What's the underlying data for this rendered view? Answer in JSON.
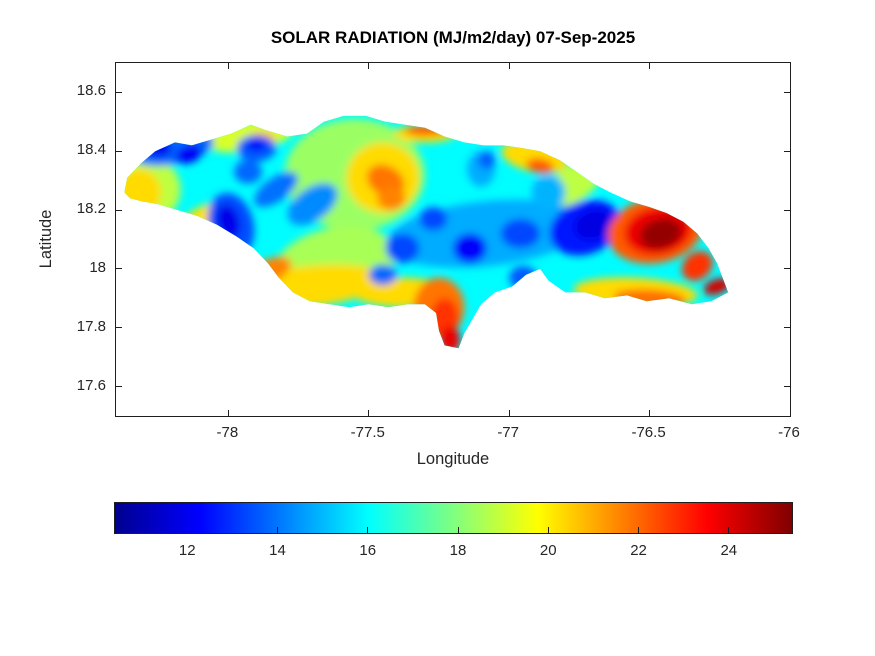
{
  "chart_data": {
    "type": "heatmap",
    "title": "SOLAR RADIATION (MJ/m2/day) 07-Sep-2025",
    "x_axis": {
      "label": "Longitude",
      "range": [
        -78.4,
        -76.0
      ],
      "ticks": [
        {
          "v": -78,
          "label": "-78"
        },
        {
          "v": -77.5,
          "label": "-77.5"
        },
        {
          "v": -77,
          "label": "-77"
        },
        {
          "v": -76.5,
          "label": "-76.5"
        },
        {
          "v": -76,
          "label": "-76"
        }
      ]
    },
    "y_axis": {
      "label": "Latitude",
      "range": [
        17.5,
        18.7
      ],
      "ticks": [
        {
          "v": 18.6,
          "label": "18.6"
        },
        {
          "v": 18.4,
          "label": "18.4"
        },
        {
          "v": 18.2,
          "label": "18.2"
        },
        {
          "v": 18,
          "label": "18"
        },
        {
          "v": 17.8,
          "label": "17.8"
        },
        {
          "v": 17.6,
          "label": "17.6"
        }
      ]
    },
    "colorbar": {
      "min": 10.4,
      "max": 25.4,
      "colormap": "jet",
      "orientation": "horizontal",
      "ticks": [
        {
          "v": 12,
          "label": "12"
        },
        {
          "v": 14,
          "label": "14"
        },
        {
          "v": 16,
          "label": "16"
        },
        {
          "v": 18,
          "label": "18"
        },
        {
          "v": 20,
          "label": "20"
        },
        {
          "v": 22,
          "label": "22"
        },
        {
          "v": 24,
          "label": "24"
        }
      ],
      "stops": [
        {
          "f": 0.0,
          "rgb": [
            0,
            0,
            143
          ]
        },
        {
          "f": 0.125,
          "rgb": [
            0,
            0,
            255
          ]
        },
        {
          "f": 0.375,
          "rgb": [
            0,
            255,
            255
          ]
        },
        {
          "f": 0.625,
          "rgb": [
            255,
            255,
            0
          ]
        },
        {
          "f": 0.875,
          "rgb": [
            255,
            0,
            0
          ]
        },
        {
          "f": 1.0,
          "rgb": [
            128,
            0,
            0
          ]
        }
      ]
    },
    "grid": false,
    "legend": "colorbar-bottom",
    "base_value": 16.0,
    "island_outline": [
      [
        -78.37,
        18.26
      ],
      [
        -78.36,
        18.31
      ],
      [
        -78.31,
        18.36
      ],
      [
        -78.26,
        18.4
      ],
      [
        -78.19,
        18.43
      ],
      [
        -78.13,
        18.42
      ],
      [
        -78.06,
        18.44
      ],
      [
        -77.99,
        18.46
      ],
      [
        -77.92,
        18.49
      ],
      [
        -77.86,
        18.47
      ],
      [
        -77.79,
        18.45
      ],
      [
        -77.72,
        18.46
      ],
      [
        -77.66,
        18.5
      ],
      [
        -77.59,
        18.52
      ],
      [
        -77.51,
        18.52
      ],
      [
        -77.44,
        18.5
      ],
      [
        -77.37,
        18.49
      ],
      [
        -77.3,
        18.48
      ],
      [
        -77.23,
        18.45
      ],
      [
        -77.16,
        18.43
      ],
      [
        -77.09,
        18.42
      ],
      [
        -77.02,
        18.42
      ],
      [
        -76.95,
        18.41
      ],
      [
        -76.89,
        18.4
      ],
      [
        -76.82,
        18.37
      ],
      [
        -76.76,
        18.33
      ],
      [
        -76.7,
        18.29
      ],
      [
        -76.64,
        18.26
      ],
      [
        -76.57,
        18.23
      ],
      [
        -76.5,
        18.21
      ],
      [
        -76.44,
        18.19
      ],
      [
        -76.38,
        18.16
      ],
      [
        -76.33,
        18.12
      ],
      [
        -76.29,
        18.07
      ],
      [
        -76.26,
        18.02
      ],
      [
        -76.24,
        17.97
      ],
      [
        -76.22,
        17.92
      ],
      [
        -76.28,
        17.89
      ],
      [
        -76.35,
        17.88
      ],
      [
        -76.43,
        17.9
      ],
      [
        -76.51,
        17.89
      ],
      [
        -76.58,
        17.91
      ],
      [
        -76.66,
        17.9
      ],
      [
        -76.73,
        17.92
      ],
      [
        -76.8,
        17.92
      ],
      [
        -76.86,
        17.96
      ],
      [
        -76.89,
        18.0
      ],
      [
        -76.94,
        17.98
      ],
      [
        -76.99,
        17.94
      ],
      [
        -77.05,
        17.92
      ],
      [
        -77.1,
        17.88
      ],
      [
        -77.13,
        17.83
      ],
      [
        -77.16,
        17.78
      ],
      [
        -77.18,
        17.73
      ],
      [
        -77.23,
        17.74
      ],
      [
        -77.25,
        17.79
      ],
      [
        -77.26,
        17.85
      ],
      [
        -77.3,
        17.88
      ],
      [
        -77.36,
        17.88
      ],
      [
        -77.43,
        17.87
      ],
      [
        -77.5,
        17.88
      ],
      [
        -77.57,
        17.87
      ],
      [
        -77.64,
        17.88
      ],
      [
        -77.71,
        17.89
      ],
      [
        -77.77,
        17.92
      ],
      [
        -77.82,
        17.97
      ],
      [
        -77.86,
        18.02
      ],
      [
        -77.91,
        18.07
      ],
      [
        -77.97,
        18.11
      ],
      [
        -78.04,
        18.15
      ],
      [
        -78.11,
        18.18
      ],
      [
        -78.18,
        18.2
      ],
      [
        -78.25,
        18.22
      ],
      [
        -78.31,
        18.23
      ],
      [
        -78.35,
        18.24
      ]
    ],
    "features": [
      {
        "lon": -78.31,
        "lat": 18.27,
        "rx": 0.14,
        "ry": 0.12,
        "rot": 0,
        "v": 18.8
      },
      {
        "lon": -78.32,
        "lat": 18.26,
        "rx": 0.08,
        "ry": 0.08,
        "rot": 0,
        "v": 20.3
      },
      {
        "lon": -77.93,
        "lat": 18.45,
        "rx": 0.16,
        "ry": 0.05,
        "rot": -8,
        "v": 19.2
      },
      {
        "lon": -77.88,
        "lat": 18.44,
        "rx": 0.05,
        "ry": 0.03,
        "rot": 0,
        "v": 20.6
      },
      {
        "lon": -77.55,
        "lat": 18.32,
        "rx": 0.25,
        "ry": 0.19,
        "rot": 0,
        "v": 18.3
      },
      {
        "lon": -77.45,
        "lat": 18.31,
        "rx": 0.13,
        "ry": 0.12,
        "rot": 0,
        "v": 20.3
      },
      {
        "lon": -77.44,
        "lat": 18.3,
        "rx": 0.07,
        "ry": 0.05,
        "rot": 30,
        "v": 21.8
      },
      {
        "lon": -77.42,
        "lat": 18.24,
        "rx": 0.05,
        "ry": 0.04,
        "rot": 0,
        "v": 21.6
      },
      {
        "lon": -77.3,
        "lat": 18.46,
        "rx": 0.11,
        "ry": 0.03,
        "rot": 0,
        "v": 20.3
      },
      {
        "lon": -77.3,
        "lat": 18.47,
        "rx": 0.07,
        "ry": 0.015,
        "rot": 0,
        "v": 22.9
      },
      {
        "lon": -77.62,
        "lat": 18.02,
        "rx": 0.22,
        "ry": 0.12,
        "rot": -12,
        "v": 18.5
      },
      {
        "lon": -77.72,
        "lat": 17.94,
        "rx": 0.28,
        "ry": 0.07,
        "rot": -6,
        "v": 20.3
      },
      {
        "lon": -77.86,
        "lat": 17.99,
        "rx": 0.09,
        "ry": 0.04,
        "rot": -25,
        "v": 21.6
      },
      {
        "lon": -78.09,
        "lat": 18.16,
        "rx": 0.11,
        "ry": 0.05,
        "rot": -30,
        "v": 20.2
      },
      {
        "lon": -77.38,
        "lat": 17.92,
        "rx": 0.18,
        "ry": 0.05,
        "rot": 0,
        "v": 20.3
      },
      {
        "lon": -76.91,
        "lat": 18.38,
        "rx": 0.12,
        "ry": 0.05,
        "rot": 12,
        "v": 20.3
      },
      {
        "lon": -76.89,
        "lat": 18.35,
        "rx": 0.05,
        "ry": 0.025,
        "rot": 10,
        "v": 22.2
      },
      {
        "lon": -76.77,
        "lat": 18.29,
        "rx": 0.11,
        "ry": 0.06,
        "rot": -35,
        "v": 18.8
      },
      {
        "lon": -76.55,
        "lat": 17.92,
        "rx": 0.22,
        "ry": 0.05,
        "rot": 3,
        "v": 20.3
      },
      {
        "lon": -76.5,
        "lat": 17.9,
        "rx": 0.13,
        "ry": 0.03,
        "rot": 3,
        "v": 21.9
      },
      {
        "lon": -77.25,
        "lat": 17.87,
        "rx": 0.09,
        "ry": 0.1,
        "rot": 0,
        "v": 21.8
      },
      {
        "lon": -77.23,
        "lat": 17.83,
        "rx": 0.05,
        "ry": 0.07,
        "rot": 0,
        "v": 22.8
      },
      {
        "lon": -77.21,
        "lat": 17.76,
        "rx": 0.035,
        "ry": 0.045,
        "rot": 0,
        "v": 23.8
      },
      {
        "lon": -78.2,
        "lat": 18.41,
        "rx": 0.15,
        "ry": 0.055,
        "rot": -10,
        "v": 13.8
      },
      {
        "lon": -78.25,
        "lat": 18.41,
        "rx": 0.05,
        "ry": 0.03,
        "rot": 0,
        "v": 12.0
      },
      {
        "lon": -78.14,
        "lat": 18.39,
        "rx": 0.05,
        "ry": 0.03,
        "rot": -20,
        "v": 12.1
      },
      {
        "lon": -77.9,
        "lat": 18.41,
        "rx": 0.07,
        "ry": 0.045,
        "rot": 0,
        "v": 13.6
      },
      {
        "lon": -77.9,
        "lat": 18.42,
        "rx": 0.035,
        "ry": 0.02,
        "rot": 0,
        "v": 12.2
      },
      {
        "lon": -77.93,
        "lat": 18.33,
        "rx": 0.05,
        "ry": 0.04,
        "rot": 0,
        "v": 13.8
      },
      {
        "lon": -77.83,
        "lat": 18.27,
        "rx": 0.09,
        "ry": 0.04,
        "rot": -35,
        "v": 13.9
      },
      {
        "lon": -77.99,
        "lat": 18.15,
        "rx": 0.08,
        "ry": 0.11,
        "rot": -15,
        "v": 13.4
      },
      {
        "lon": -78.0,
        "lat": 18.16,
        "rx": 0.04,
        "ry": 0.06,
        "rot": -15,
        "v": 11.9
      },
      {
        "lon": -77.7,
        "lat": 18.22,
        "rx": 0.1,
        "ry": 0.055,
        "rot": -35,
        "v": 14.3
      },
      {
        "lon": -77.08,
        "lat": 18.12,
        "rx": 0.36,
        "ry": 0.11,
        "rot": -6,
        "v": 14.8
      },
      {
        "lon": -77.38,
        "lat": 18.07,
        "rx": 0.06,
        "ry": 0.05,
        "rot": 0,
        "v": 13.3
      },
      {
        "lon": -77.27,
        "lat": 18.17,
        "rx": 0.05,
        "ry": 0.04,
        "rot": 0,
        "v": 13.3
      },
      {
        "lon": -77.14,
        "lat": 18.07,
        "rx": 0.06,
        "ry": 0.05,
        "rot": 0,
        "v": 12.2
      },
      {
        "lon": -76.96,
        "lat": 18.12,
        "rx": 0.07,
        "ry": 0.05,
        "rot": 0,
        "v": 13.3
      },
      {
        "lon": -76.73,
        "lat": 18.14,
        "rx": 0.13,
        "ry": 0.09,
        "rot": -20,
        "v": 12.6
      },
      {
        "lon": -76.7,
        "lat": 18.15,
        "rx": 0.07,
        "ry": 0.05,
        "rot": -20,
        "v": 11.8
      },
      {
        "lon": -76.95,
        "lat": 17.97,
        "rx": 0.05,
        "ry": 0.04,
        "rot": 0,
        "v": 13.6
      },
      {
        "lon": -77.45,
        "lat": 17.98,
        "rx": 0.05,
        "ry": 0.035,
        "rot": 0,
        "v": 13.8
      },
      {
        "lon": -77.1,
        "lat": 18.34,
        "rx": 0.05,
        "ry": 0.06,
        "rot": 0,
        "v": 14.8
      },
      {
        "lon": -77.08,
        "lat": 18.37,
        "rx": 0.03,
        "ry": 0.03,
        "rot": 0,
        "v": 13.6
      },
      {
        "lon": -76.86,
        "lat": 18.26,
        "rx": 0.06,
        "ry": 0.06,
        "rot": 0,
        "v": 14.9
      },
      {
        "lon": -76.48,
        "lat": 18.13,
        "rx": 0.17,
        "ry": 0.11,
        "rot": -10,
        "v": 22.2
      },
      {
        "lon": -76.47,
        "lat": 18.13,
        "rx": 0.12,
        "ry": 0.08,
        "rot": -10,
        "v": 23.8
      },
      {
        "lon": -76.46,
        "lat": 18.12,
        "rx": 0.075,
        "ry": 0.05,
        "rot": -15,
        "v": 25.1
      },
      {
        "lon": -76.26,
        "lat": 17.94,
        "rx": 0.05,
        "ry": 0.025,
        "rot": -20,
        "v": 24.2
      },
      {
        "lon": -76.33,
        "lat": 18.01,
        "rx": 0.06,
        "ry": 0.045,
        "rot": -40,
        "v": 22.8
      }
    ]
  }
}
